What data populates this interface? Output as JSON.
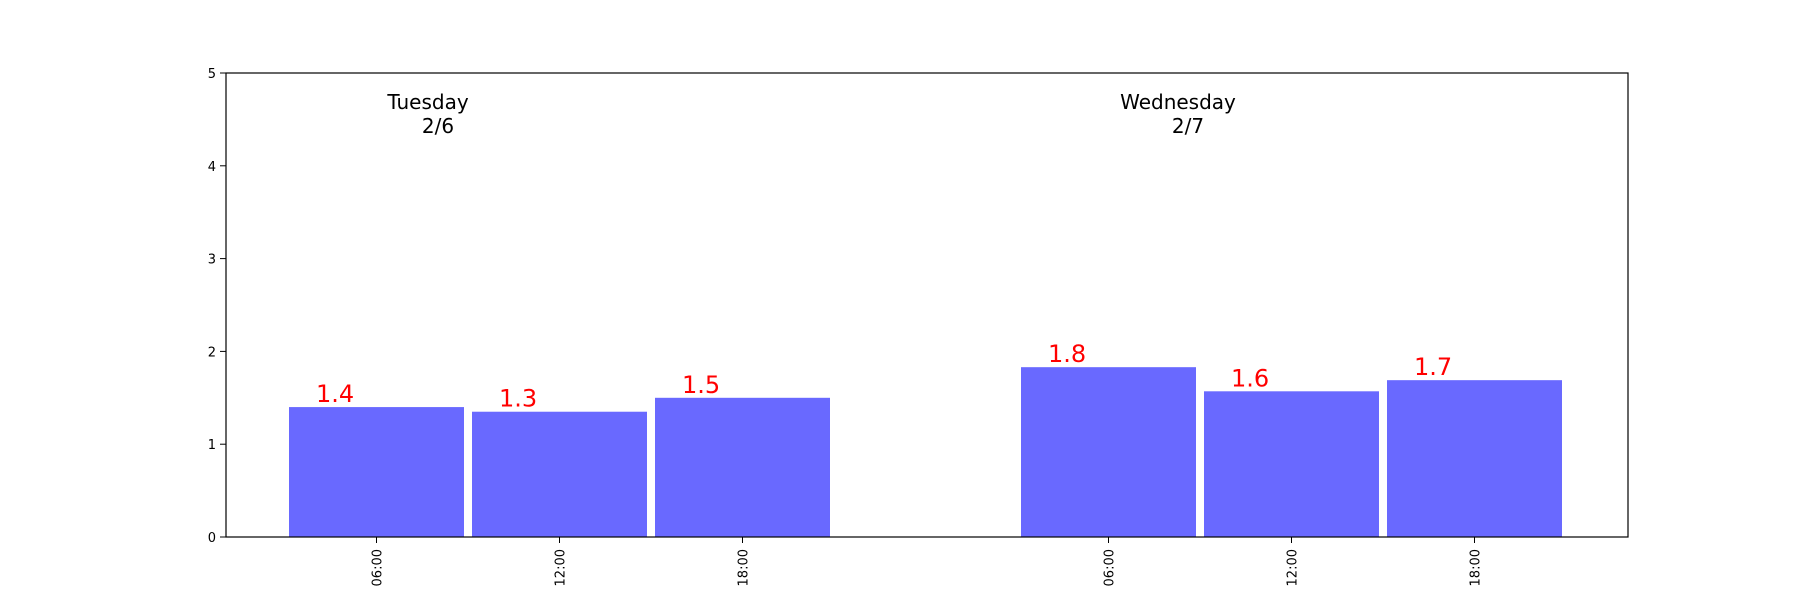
{
  "chart_data": {
    "type": "bar",
    "title": "",
    "xlabel": "",
    "ylabel": "",
    "ylim": [
      0,
      5
    ],
    "yticks": [
      "0",
      "1",
      "2",
      "3",
      "4",
      "5"
    ],
    "grid": false,
    "groups": [
      {
        "day": "Tuesday",
        "date": "2/6",
        "categories": [
          "06:00",
          "12:00",
          "18:00"
        ],
        "values": [
          1.4,
          1.35,
          1.5
        ],
        "value_labels": [
          "1.4",
          "1.3",
          "1.5"
        ]
      },
      {
        "day": "Wednesday",
        "date": "2/7",
        "categories": [
          "06:00",
          "12:00",
          "18:00"
        ],
        "values": [
          1.83,
          1.57,
          1.69
        ],
        "value_labels": [
          "1.8",
          "1.6",
          "1.7"
        ]
      }
    ],
    "bar_color": "#6969ff",
    "label_color": "#ff0000"
  }
}
